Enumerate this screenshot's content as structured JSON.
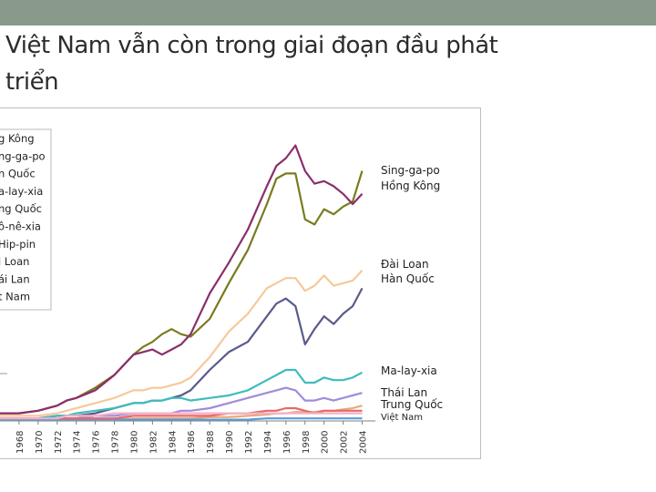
{
  "slide": {
    "title_line1": "Việt Nam vẫn còn trong giai đoạn đầu phát",
    "title_line2": "triển"
  },
  "chart_data": {
    "type": "line",
    "title": "",
    "xlabel": "",
    "ylabel": "",
    "x_tick_labels": [
      "1968",
      "1970",
      "1972",
      "1974",
      "1976",
      "1978",
      "1980",
      "1982",
      "1984",
      "1986",
      "1988",
      "1990",
      "1992",
      "1994",
      "1996",
      "1998",
      "2000",
      "2002",
      "2004"
    ],
    "legend_partial": [
      "g Kông",
      "ng-ga-po",
      "n Quốc",
      "a-lay-xia",
      "ng Quốc",
      "ô-nê-xia",
      "Hip-pin",
      "i Loan",
      "ái Lan",
      "t Nam"
    ],
    "grid": false,
    "x": [
      1966,
      1968,
      1970,
      1972,
      1973,
      1974,
      1976,
      1978,
      1980,
      1981,
      1982,
      1983,
      1984,
      1985,
      1986,
      1988,
      1990,
      1992,
      1994,
      1995,
      1996,
      1997,
      1998,
      1999,
      2000,
      2001,
      2002,
      2003,
      2004
    ],
    "series": [
      {
        "name": "Sing-ga-po",
        "color": "#7a7a1e",
        "values": [
          3,
          3,
          4,
          6,
          8,
          9,
          13,
          18,
          26,
          29,
          31,
          34,
          36,
          34,
          33,
          40,
          54,
          67,
          85,
          95,
          97,
          97,
          79,
          77,
          83,
          81,
          84,
          86,
          98
        ]
      },
      {
        "name": "Hồng Kông",
        "color": "#8b2e6b",
        "values": [
          3,
          3,
          4,
          6,
          8,
          9,
          12,
          18,
          26,
          27,
          28,
          26,
          28,
          30,
          34,
          50,
          62,
          75,
          92,
          100,
          103,
          108,
          98,
          93,
          94,
          92,
          89,
          85,
          89
        ]
      },
      {
        "name": "Đài Loan",
        "color": "#f6c99b",
        "values": [
          2,
          2,
          2,
          3,
          4,
          5,
          7,
          9,
          12,
          12,
          13,
          13,
          14,
          15,
          17,
          25,
          35,
          42,
          52,
          54,
          56,
          56,
          51,
          53,
          57,
          53,
          54,
          55,
          59
        ]
      },
      {
        "name": "Hàn Quốc",
        "color": "#5a5a8c",
        "values": [
          1,
          1,
          1,
          2,
          2,
          2,
          3,
          5,
          7,
          7,
          8,
          8,
          9,
          10,
          12,
          20,
          27,
          31,
          41,
          46,
          48,
          45,
          30,
          36,
          41,
          38,
          42,
          45,
          52
        ]
      },
      {
        "name": "Ma-lay-xia",
        "color": "#3fbcbc",
        "values": [
          1,
          1,
          1,
          2,
          2,
          3,
          4,
          5,
          7,
          7,
          8,
          8,
          9,
          9,
          8,
          9,
          10,
          12,
          16,
          18,
          20,
          20,
          15,
          15,
          17,
          16,
          16,
          17,
          19
        ]
      },
      {
        "name": "Thái Lan",
        "color": "#a08cd8",
        "values": [
          1,
          1,
          1,
          1,
          1,
          1,
          2,
          2,
          3,
          3,
          3,
          3,
          3,
          4,
          4,
          5,
          7,
          9,
          11,
          12,
          13,
          12,
          8,
          8,
          9,
          8,
          9,
          10,
          11
        ]
      },
      {
        "name": "Trung Quốc",
        "color": "#e8a87c",
        "values": [
          0.5,
          0.5,
          0.5,
          0.5,
          0.5,
          0.5,
          0.5,
          0.5,
          1,
          1,
          1,
          1,
          1,
          1,
          1,
          1.5,
          1.5,
          2,
          2.5,
          3,
          3,
          3.5,
          3.5,
          3.5,
          4,
          4,
          4.5,
          5,
          6
        ]
      },
      {
        "name": "Việt Nam",
        "color": "#5b9bd5",
        "values": [
          0.5,
          0.5,
          0.5,
          0.5,
          0.5,
          0.5,
          0.5,
          0.5,
          0.5,
          0.5,
          0.5,
          0.5,
          0.5,
          0.5,
          0.5,
          0.5,
          0.5,
          0.5,
          1,
          1,
          1,
          1,
          1,
          1,
          1,
          1,
          1,
          1,
          1
        ]
      },
      {
        "name": "",
        "color": "#e96868",
        "values": [
          1,
          1,
          1,
          1,
          1,
          1,
          1,
          1,
          2,
          2,
          2,
          2,
          2,
          2,
          2,
          2,
          3,
          3,
          4,
          4,
          5,
          5,
          4,
          3,
          4,
          4,
          4,
          4,
          4
        ]
      },
      {
        "name": "",
        "color": "#f2b2c8",
        "values": [
          1,
          1,
          1,
          1,
          2,
          2,
          2,
          3,
          3,
          3,
          3,
          3,
          3,
          3,
          3,
          3,
          3,
          3,
          3,
          3,
          3,
          3,
          3,
          3,
          3,
          3,
          3,
          3,
          3
        ]
      }
    ],
    "right_labels": [
      {
        "text": "Sing-ga-po",
        "series": "Sing-ga-po"
      },
      {
        "text": "Hồng Kông",
        "series": "Hồng Kông"
      },
      {
        "text": "Đài Loan",
        "series": "Đài Loan"
      },
      {
        "text": "Hàn Quốc",
        "series": "Hàn Quốc"
      },
      {
        "text": "Ma-lay-xia",
        "series": "Ma-lay-xia"
      },
      {
        "text": "Thái Lan",
        "series": "Thái Lan"
      },
      {
        "text": "Trung Quốc",
        "series": "Trung Quốc"
      },
      {
        "text": "Việt Nam",
        "series": "Việt Nam"
      }
    ],
    "xlim": [
      1966,
      2005
    ],
    "ylim": [
      0,
      115
    ],
    "legend_placement": "top-left (cut off)"
  }
}
